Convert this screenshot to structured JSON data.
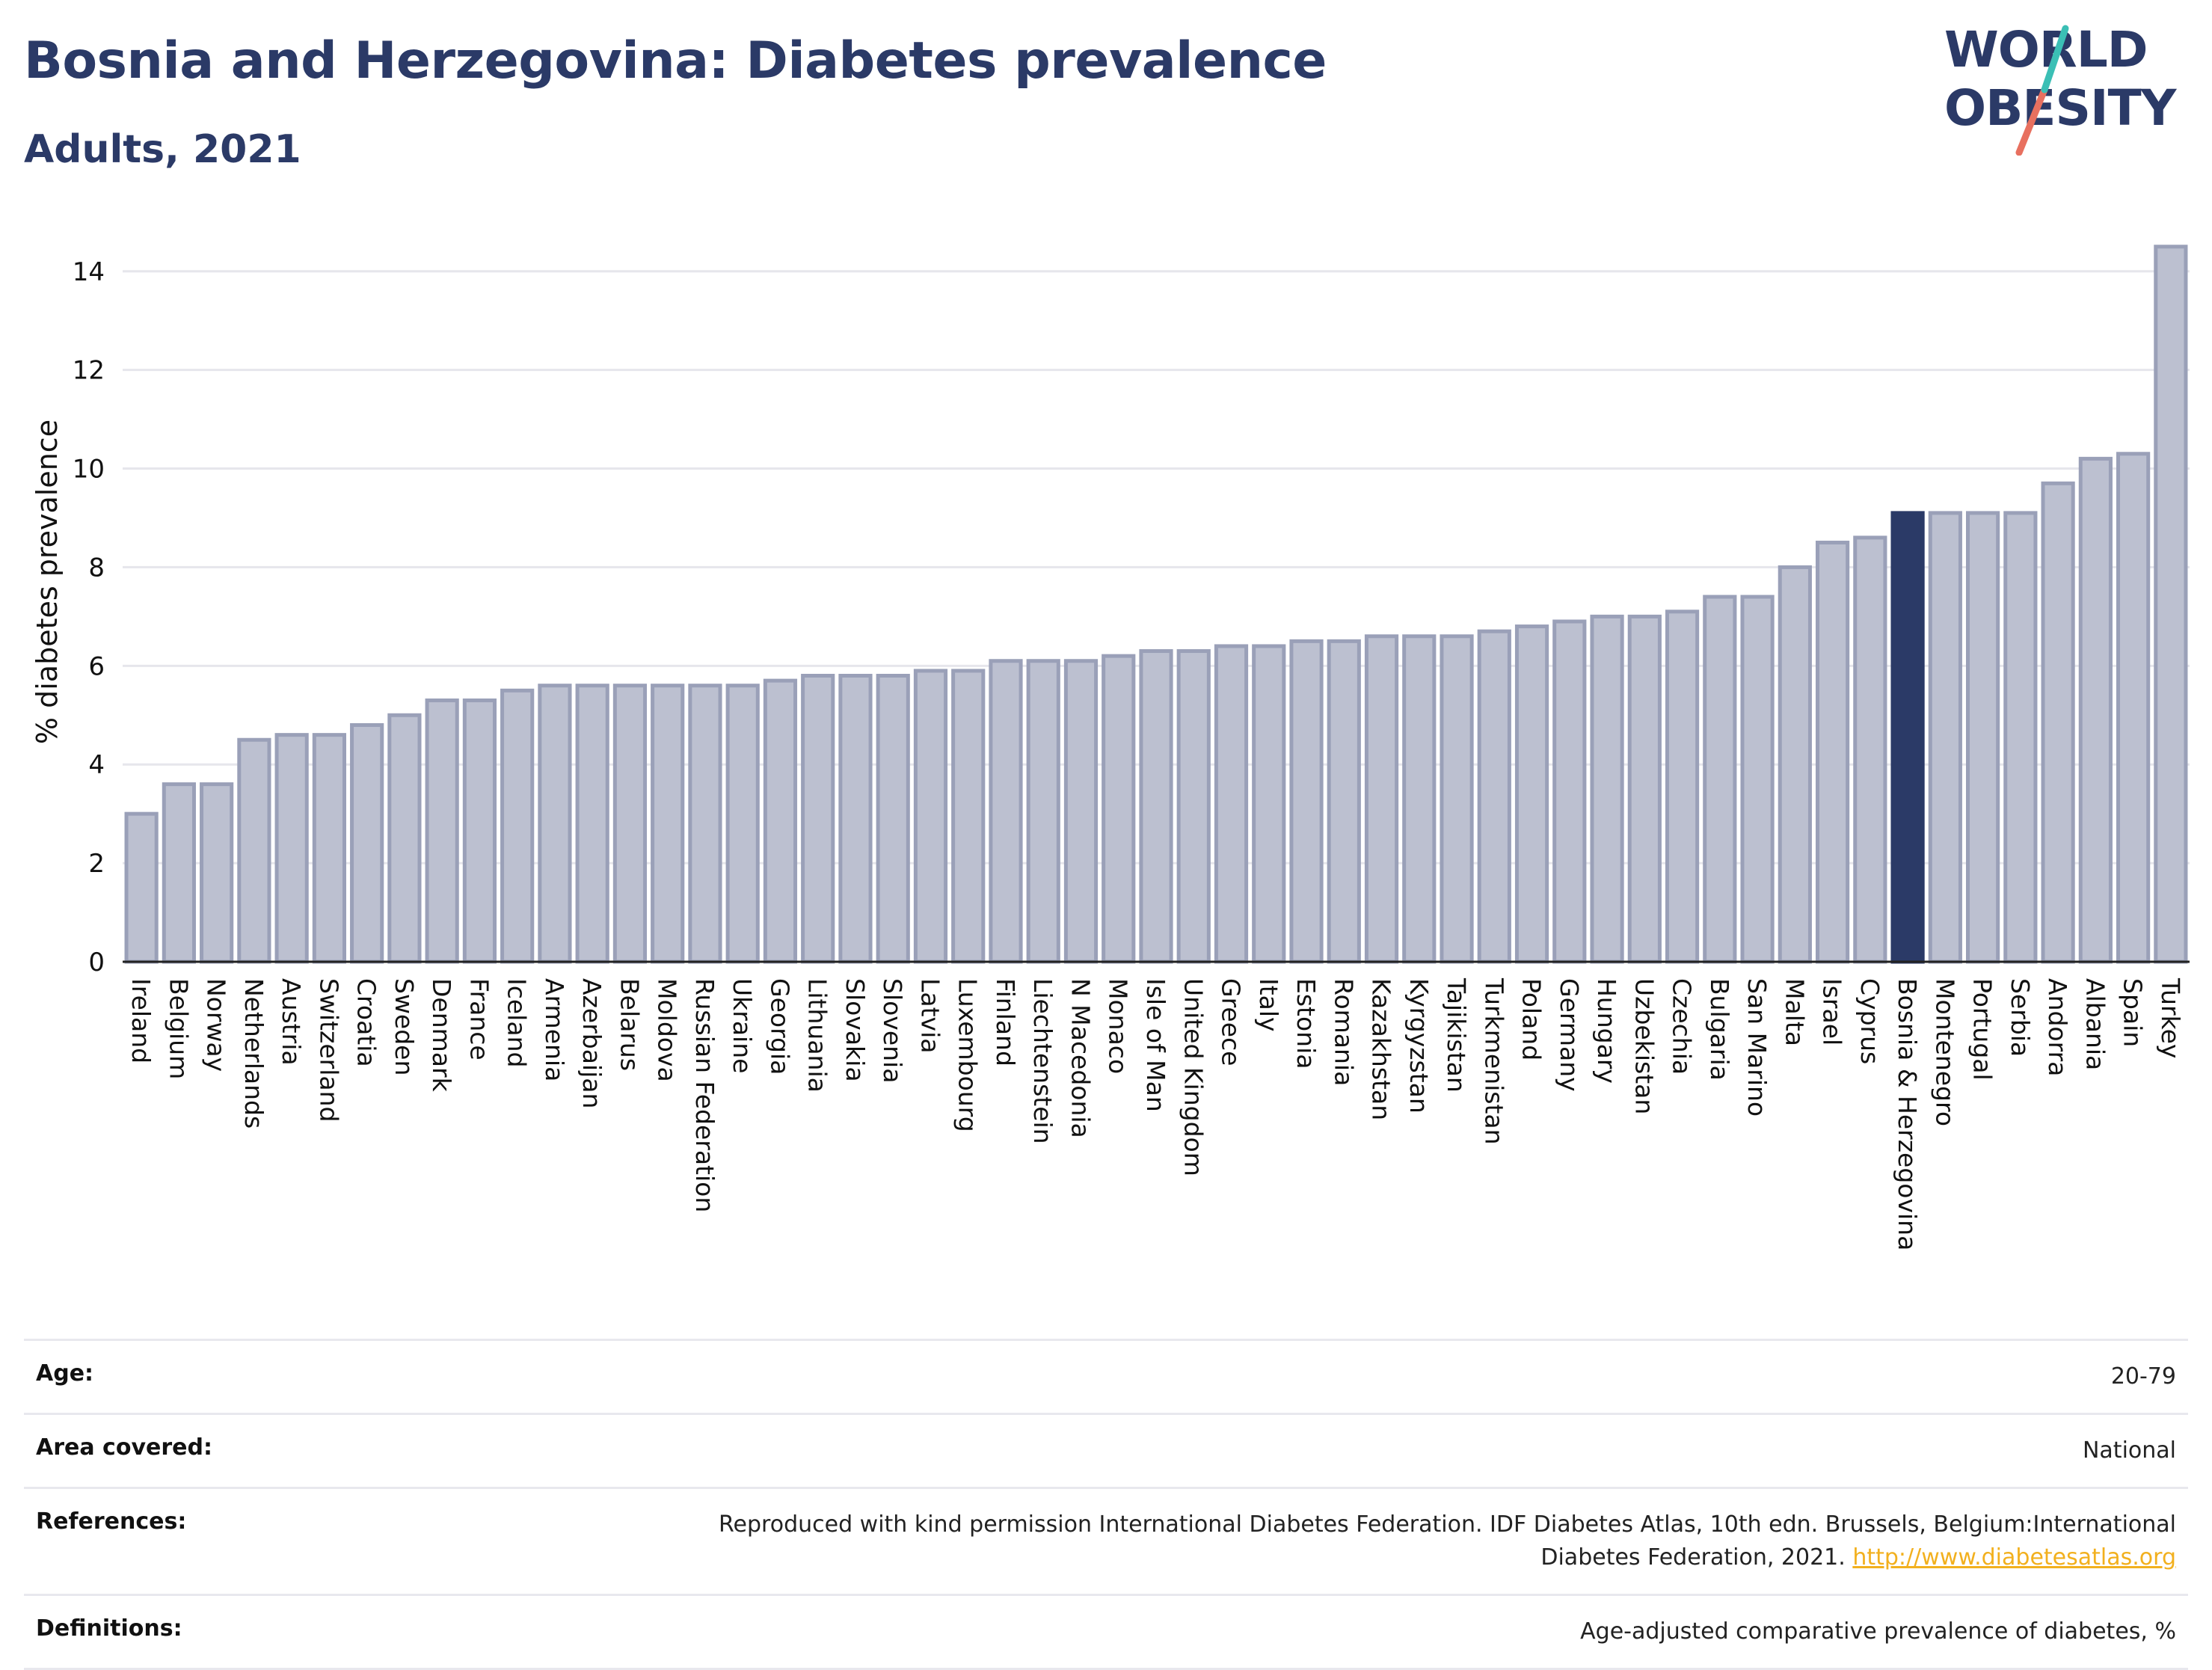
{
  "header": {
    "title": "Bosnia and Herzegovina: Diabetes prevalence",
    "subtitle": "Adults, 2021"
  },
  "logo": {
    "line1": "WORLD",
    "line2": "OBESITY",
    "colors": {
      "text": "#2b3a67",
      "slash_top": "#3bbfb5",
      "slash_bottom": "#e8705f"
    }
  },
  "colors": {
    "bar": "#bcc0d0",
    "bar_outline": "#9aa0b8",
    "highlight": "#2b3a67",
    "grid": "#e6e6ec"
  },
  "chart_data": {
    "type": "bar",
    "ylabel": "% diabetes prevalence",
    "ylim": [
      0,
      14.8
    ],
    "yticks": [
      0,
      2,
      4,
      6,
      8,
      10,
      12,
      14
    ],
    "grid": true,
    "highlight": "Bosnia & Herzegovina",
    "categories": [
      "Ireland",
      "Belgium",
      "Norway",
      "Netherlands",
      "Austria",
      "Switzerland",
      "Croatia",
      "Sweden",
      "Denmark",
      "France",
      "Iceland",
      "Armenia",
      "Azerbaijan",
      "Belarus",
      "Moldova",
      "Russian Federation",
      "Ukraine",
      "Georgia",
      "Lithuania",
      "Slovakia",
      "Slovenia",
      "Latvia",
      "Luxembourg",
      "Finland",
      "Liechtenstein",
      "N Macedonia",
      "Monaco",
      "Isle of Man",
      "United Kingdom",
      "Greece",
      "Italy",
      "Estonia",
      "Romania",
      "Kazakhstan",
      "Kyrgyzstan",
      "Tajikistan",
      "Turkmenistan",
      "Poland",
      "Germany",
      "Hungary",
      "Uzbekistan",
      "Czechia",
      "Bulgaria",
      "San Marino",
      "Malta",
      "Israel",
      "Cyprus",
      "Bosnia & Herzegovina",
      "Montenegro",
      "Portugal",
      "Serbia",
      "Andorra",
      "Albania",
      "Spain",
      "Turkey"
    ],
    "values": [
      3.0,
      3.6,
      3.6,
      4.5,
      4.6,
      4.6,
      4.8,
      5.0,
      5.3,
      5.3,
      5.5,
      5.6,
      5.6,
      5.6,
      5.6,
      5.6,
      5.6,
      5.7,
      5.8,
      5.8,
      5.8,
      5.9,
      5.9,
      6.1,
      6.1,
      6.1,
      6.2,
      6.3,
      6.3,
      6.4,
      6.4,
      6.5,
      6.5,
      6.6,
      6.6,
      6.6,
      6.7,
      6.8,
      6.9,
      7.0,
      7.0,
      7.1,
      7.4,
      7.4,
      8.0,
      8.5,
      8.6,
      9.1,
      9.1,
      9.1,
      9.1,
      9.7,
      10.2,
      10.3,
      14.5
    ]
  },
  "meta": {
    "age_label": "Age:",
    "age_value": "20-79",
    "area_label": "Area covered:",
    "area_value": "National",
    "references_label": "References:",
    "references_text": "Reproduced with kind permission International Diabetes Federation.  IDF Diabetes Atlas, 10th edn. Brussels, Belgium:International Diabetes Federation, 2021.",
    "references_link": "http://www.diabetesatlas.org",
    "definitions_label": "Definitions:",
    "definitions_value": "Age-adjusted comparative prevalence of diabetes, %"
  }
}
